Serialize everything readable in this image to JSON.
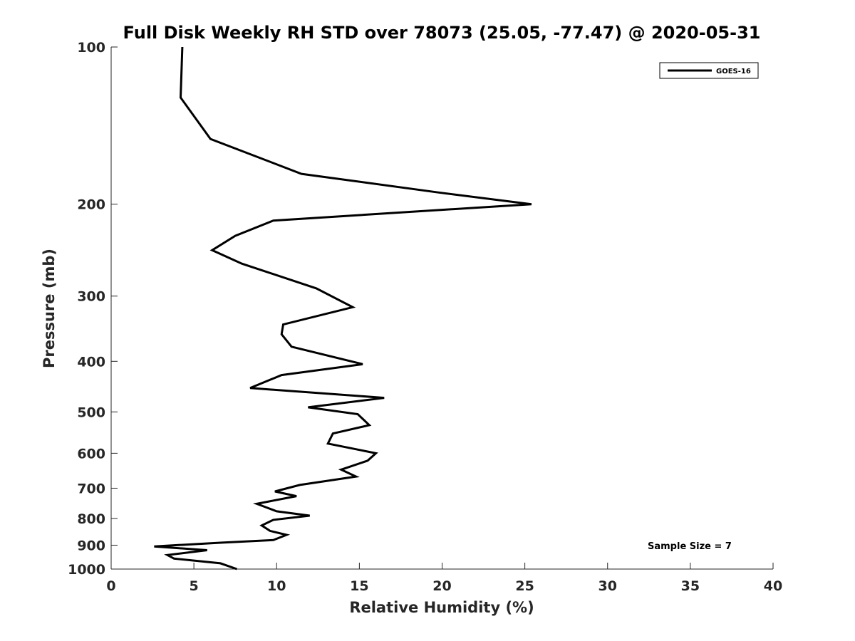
{
  "chart_data": {
    "type": "line",
    "title": "Full Disk Weekly RH STD over 78073 (25.05, -77.47) @ 2020-05-31",
    "xlabel": "Relative Humidity (%)",
    "ylabel": "Pressure (mb)",
    "xlim": [
      0,
      40
    ],
    "ylim": [
      100,
      1000
    ],
    "y_scale": "log",
    "y_reversed": true,
    "grid": false,
    "x_ticks": [
      0,
      5,
      10,
      15,
      20,
      25,
      30,
      35,
      40
    ],
    "x_tick_labels": [
      "0",
      "5",
      "10",
      "15",
      "20",
      "25",
      "30",
      "35",
      "40"
    ],
    "y_ticks": [
      100,
      200,
      300,
      400,
      500,
      600,
      700,
      800,
      900,
      1000
    ],
    "y_tick_labels": [
      "100",
      "200",
      "300",
      "400",
      "500",
      "600",
      "700",
      "800",
      "900",
      "1000"
    ],
    "legend": {
      "position": "top-right",
      "entries": [
        "GOES-16"
      ]
    },
    "annotation": "Sample Size = 7",
    "series": [
      {
        "name": "GOES-16",
        "color": "#000000",
        "points": [
          [
            4.3,
            100
          ],
          [
            4.2,
            125
          ],
          [
            6.0,
            150
          ],
          [
            11.5,
            175
          ],
          [
            19.8,
            190
          ],
          [
            25.4,
            200
          ],
          [
            9.8,
            215
          ],
          [
            7.5,
            230
          ],
          [
            6.1,
            245
          ],
          [
            7.9,
            260
          ],
          [
            12.4,
            290
          ],
          [
            14.6,
            315
          ],
          [
            10.4,
            340
          ],
          [
            10.3,
            355
          ],
          [
            10.9,
            375
          ],
          [
            15.2,
            405
          ],
          [
            10.3,
            425
          ],
          [
            8.4,
            450
          ],
          [
            16.5,
            470
          ],
          [
            11.9,
            490
          ],
          [
            14.9,
            505
          ],
          [
            15.6,
            530
          ],
          [
            13.4,
            550
          ],
          [
            13.1,
            575
          ],
          [
            16.0,
            600
          ],
          [
            15.5,
            620
          ],
          [
            13.9,
            645
          ],
          [
            14.8,
            665
          ],
          [
            11.4,
            690
          ],
          [
            9.9,
            710
          ],
          [
            11.2,
            725
          ],
          [
            8.8,
            750
          ],
          [
            10.0,
            775
          ],
          [
            12.0,
            790
          ],
          [
            9.8,
            805
          ],
          [
            9.1,
            825
          ],
          [
            9.6,
            845
          ],
          [
            10.6,
            860
          ],
          [
            9.8,
            880
          ],
          [
            6.7,
            890
          ],
          [
            2.6,
            905
          ],
          [
            5.8,
            920
          ],
          [
            3.4,
            940
          ],
          [
            3.8,
            955
          ],
          [
            6.6,
            975
          ],
          [
            7.6,
            1000
          ]
        ]
      }
    ]
  }
}
